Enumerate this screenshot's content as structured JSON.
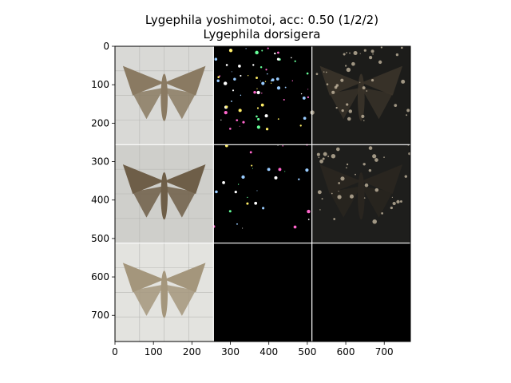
{
  "chart_data": {
    "type": "image-grid",
    "title": "Lygephila yoshimotoi, acc: 0.50 (1/2/2)",
    "subtitle": "Lygephila dorsigera",
    "xlabel": "",
    "ylabel": "",
    "xlim": [
      0,
      768
    ],
    "ylim": [
      768,
      0
    ],
    "grid": false,
    "x_ticks": [
      0,
      100,
      200,
      300,
      400,
      500,
      600,
      700
    ],
    "y_ticks": [
      0,
      100,
      200,
      300,
      400,
      500,
      600,
      700
    ],
    "tile_size": 256,
    "rows": 3,
    "cols": 3,
    "tiles": [
      {
        "row": 0,
        "col": 0,
        "kind": "moth-photo",
        "tone": "#8a7a62",
        "bg": "#d9d9d6"
      },
      {
        "row": 0,
        "col": 1,
        "kind": "saliency-sparse",
        "tone": "#ffffff",
        "bg": "#000000"
      },
      {
        "row": 0,
        "col": 2,
        "kind": "masked-photo",
        "tone": "#3b342a",
        "bg": "#1c1c1a"
      },
      {
        "row": 1,
        "col": 0,
        "kind": "moth-photo",
        "tone": "#6e5e48",
        "bg": "#cfcfcb"
      },
      {
        "row": 1,
        "col": 1,
        "kind": "saliency-sparse",
        "tone": "#c8c8ff",
        "bg": "#000000"
      },
      {
        "row": 1,
        "col": 2,
        "kind": "masked-photo",
        "tone": "#2a2620",
        "bg": "#1e1e1c"
      },
      {
        "row": 2,
        "col": 0,
        "kind": "moth-photo",
        "tone": "#a4967c",
        "bg": "#e3e3df"
      },
      {
        "row": 2,
        "col": 1,
        "kind": "empty",
        "tone": "#000000",
        "bg": "#000000"
      },
      {
        "row": 2,
        "col": 2,
        "kind": "empty",
        "tone": "#000000",
        "bg": "#000000"
      }
    ]
  }
}
